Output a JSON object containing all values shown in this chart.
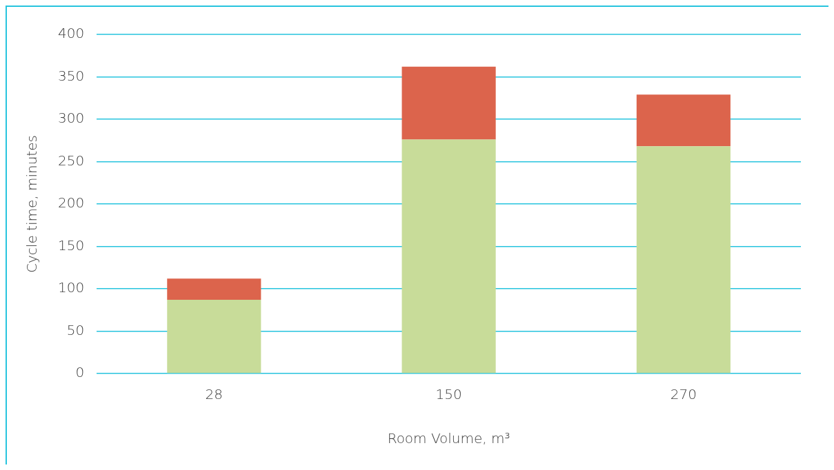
{
  "chart_data": {
    "type": "bar",
    "stacked": true,
    "xlabel": "Room Volume, m³",
    "ylabel": "Cycle time, minutes",
    "categories": [
      "28",
      "150",
      "270"
    ],
    "series": [
      {
        "color": "#c8dc99",
        "values": [
          87,
          276,
          268
        ]
      },
      {
        "color": "#dc644c",
        "values": [
          25,
          86,
          61
        ]
      }
    ],
    "ylim": [
      0,
      400
    ],
    "yticks": [
      0,
      50,
      100,
      150,
      200,
      250,
      300,
      350,
      400
    ],
    "grid": "y",
    "legend": false
  }
}
